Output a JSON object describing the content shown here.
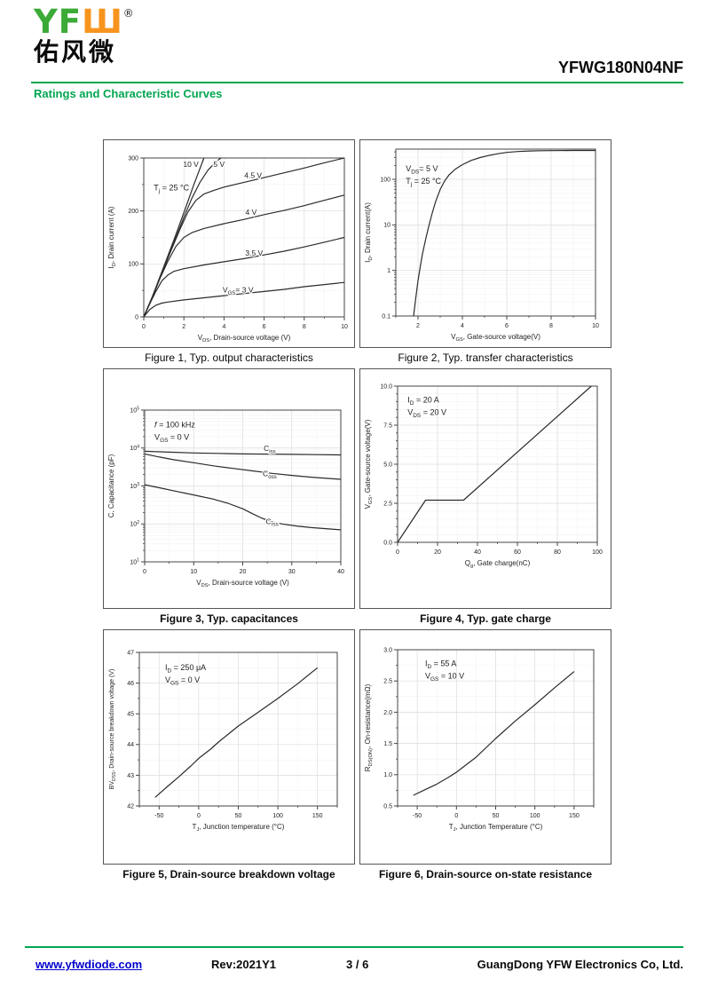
{
  "header": {
    "logo": {
      "text_green": "YF",
      "glyph_orange": "Ш",
      "registered": "®",
      "chinese": "佑风微"
    },
    "part_number": "YFWG180N04NF",
    "section_title": "Ratings and Characteristic Curves"
  },
  "colors": {
    "green": "#00A650",
    "logo_green": "#3BAA36",
    "logo_orange": "#F7941E",
    "link_blue": "#0000CC",
    "curve": "#2B2B2B"
  },
  "figures": [
    {
      "caption": "Figure 1, Typ. output characteristics",
      "chart_data": {
        "type": "line",
        "xlabel": "V~DS~, Drain-source voltage (V)",
        "ylabel": "I~D~, Drain current (A)",
        "x_range": [
          0,
          10
        ],
        "y_range": [
          0,
          300
        ],
        "xticks": [
          0,
          2,
          4,
          6,
          8,
          10
        ],
        "xtick_labels": [
          "0",
          "2",
          "4",
          "6",
          "8",
          "10"
        ],
        "yticks": [
          0,
          100,
          200,
          300
        ],
        "ytick_labels": [
          "0",
          "100",
          "200",
          "300"
        ],
        "annotations": [
          "T~j~ = 25 °C"
        ],
        "ann_pos": [
          0.05,
          0.17
        ],
        "series": [
          {
            "name": "VGS=10V",
            "x": [
              0,
              0.5,
              1,
              1.5,
              2,
              2.5,
              3.0
            ],
            "y": [
              0,
              45,
              95,
              145,
              197,
              250,
              300
            ]
          },
          {
            "name": "VGS=5V",
            "x": [
              0,
              0.5,
              1,
              1.5,
              2,
              2.4,
              2.8,
              3.2,
              3.6,
              3.85
            ],
            "y": [
              0,
              44,
              92,
              140,
              188,
              224,
              254,
              277,
              293,
              300
            ]
          },
          {
            "name": "VGS=4.5V",
            "x": [
              0,
              0.4,
              0.8,
              1.3,
              1.8,
              2.2,
              2.6,
              3.0,
              3.5,
              4,
              5,
              6,
              7,
              8,
              9,
              10
            ],
            "y": [
              0,
              35,
              75,
              120,
              165,
              198,
              220,
              232,
              239,
              245,
              254,
              263,
              272,
              281,
              291,
              300
            ]
          },
          {
            "name": "VGS=4V",
            "x": [
              0,
              0.4,
              0.8,
              1.2,
              1.6,
              2.0,
              2.4,
              3,
              4,
              5,
              6,
              7,
              8,
              9,
              10
            ],
            "y": [
              0,
              34,
              72,
              105,
              133,
              150,
              159,
              167,
              176,
              184,
              193,
              201,
              210,
              220,
              230
            ]
          },
          {
            "name": "VGS=3.5V",
            "x": [
              0,
              0.3,
              0.6,
              0.9,
              1.2,
              1.5,
              2,
              3,
              4,
              5,
              6,
              7,
              8,
              9,
              10
            ],
            "y": [
              0,
              25,
              48,
              68,
              79,
              86,
              91,
              98,
              104,
              110,
              117,
              124,
              132,
              141,
              150
            ]
          },
          {
            "name": "VGS=3V",
            "x": [
              0,
              0.3,
              0.6,
              0.9,
              1.2,
              2,
              3,
              4,
              5,
              6,
              7,
              8,
              9,
              10
            ],
            "y": [
              0,
              14,
              22,
              26,
              28,
              32,
              36,
              40,
              44,
              48,
              52,
              57,
              61,
              65
            ]
          }
        ],
        "curve_labels": [
          {
            "text": "10 V",
            "x": 2.35,
            "y": 283
          },
          {
            "text": "5 V",
            "x": 3.75,
            "y": 283
          },
          {
            "text": "4.5 V",
            "x": 5.45,
            "y": 262
          },
          {
            "text": "4 V",
            "x": 5.35,
            "y": 193
          },
          {
            "text": "3.5 V",
            "x": 5.5,
            "y": 116
          },
          {
            "text": "V~GS~= 3 V",
            "x": 4.7,
            "y": 46
          }
        ]
      }
    },
    {
      "caption": "Figure 2, Typ. transfer characteristics",
      "chart_data": {
        "type": "line",
        "xlabel": "V~GS~, Gate-source voltage(V)",
        "ylabel": "I~D~, Drain current(A)",
        "x_range": [
          1,
          10
        ],
        "y_range": [
          0.1,
          460
        ],
        "y_log": true,
        "xticks": [
          2,
          4,
          6,
          8,
          10
        ],
        "xtick_labels": [
          "2",
          "4",
          "6",
          "8",
          "10"
        ],
        "yticks": [
          0.1,
          1,
          10,
          100
        ],
        "ytick_labels": [
          "0.1",
          "1",
          "10",
          "100"
        ],
        "annotations": [
          "V~DS~= 5 V",
          "T~j~ = 25 °C"
        ],
        "ann_pos": [
          0.05,
          0.1
        ],
        "series": [
          {
            "name": "ID vs VGS",
            "x": [
              1.8,
              1.9,
              2.0,
              2.1,
              2.2,
              2.35,
              2.5,
              2.65,
              2.8,
              3.0,
              3.2,
              3.4,
              3.7,
              4.0,
              4.4,
              4.8,
              5.2,
              5.6,
              6.0,
              6.5,
              7.0,
              7.5,
              8.0,
              9.0,
              10
            ],
            "y": [
              0.1,
              0.25,
              0.6,
              1.2,
              2.3,
              5,
              10,
              19,
              33,
              60,
              92,
              125,
              170,
              210,
              260,
              300,
              335,
              365,
              390,
              408,
              418,
              424,
              427,
              430,
              430
            ]
          }
        ],
        "curve_labels": []
      }
    },
    {
      "caption": "Figure 3, Typ. capacitances",
      "chart_data": {
        "type": "line",
        "xlabel": "V~DS~, Drain-source voltage (V)",
        "ylabel": "C, Capacitance (pF)",
        "x_range": [
          0,
          40
        ],
        "y_range": [
          10,
          100000
        ],
        "y_log": true,
        "xticks": [
          0,
          10,
          20,
          30,
          40
        ],
        "xtick_labels": [
          "0",
          "10",
          "20",
          "30",
          "40"
        ],
        "yticks": [
          10,
          100,
          1000,
          10000,
          100000
        ],
        "ytick_labels": [
          "10^1^",
          "10^2^",
          "10^3^",
          "10^4^",
          "10^5^"
        ],
        "annotations": [
          "*f* = 100 kHz",
          "V~GS~ = 0 V"
        ],
        "ann_pos": [
          0.05,
          0.08
        ],
        "series": [
          {
            "name": "Ciss",
            "x": [
              0,
              5,
              10,
              15,
              20,
              25,
              30,
              35,
              40
            ],
            "y": [
              8200,
              7800,
              7400,
              7200,
              7000,
              6900,
              6800,
              6700,
              6600
            ]
          },
          {
            "name": "Coss",
            "x": [
              0,
              3,
              6,
              10,
              14,
              18,
              22,
              26,
              30,
              34,
              40
            ],
            "y": [
              7000,
              5800,
              4900,
              4100,
              3400,
              2900,
              2500,
              2150,
              1900,
              1700,
              1500
            ]
          },
          {
            "name": "Crss",
            "x": [
              0,
              3,
              6,
              10,
              14,
              17,
              20,
              22,
              24,
              26,
              28,
              31,
              34,
              40
            ],
            "y": [
              1080,
              900,
              740,
              580,
              450,
              350,
              250,
              185,
              140,
              115,
              100,
              88,
              80,
              70
            ]
          }
        ],
        "curve_labels": [
          {
            "text": "C~iss~",
            "x": 25.5,
            "y": 8300
          },
          {
            "text": "C~oss~",
            "x": 25.5,
            "y": 1800
          },
          {
            "text": "C~rss~",
            "x": 26,
            "y": 100
          }
        ]
      }
    },
    {
      "caption": "Figure 4, Typ. gate charge",
      "chart_data": {
        "type": "line",
        "xlabel": "Q~g~, Gate charge(nC)",
        "ylabel": "V~GS~, Gate-source voltage(V)",
        "x_range": [
          0,
          100
        ],
        "y_range": [
          0,
          10
        ],
        "xticks": [
          0,
          20,
          40,
          60,
          80,
          100
        ],
        "xtick_labels": [
          "0",
          "20",
          "40",
          "60",
          "80",
          "100"
        ],
        "yticks": [
          0,
          2.5,
          5,
          7.5,
          10
        ],
        "ytick_labels": [
          "0.0",
          "2.5",
          "5.0",
          "7.5",
          "10.0"
        ],
        "y_minor_div": 5,
        "annotations": [
          "I~D~  = 20 A",
          "V~DS~ = 20 V"
        ],
        "ann_pos": [
          0.05,
          0.07
        ],
        "series": [
          {
            "name": "VGS vs Qg",
            "x": [
              0,
              14,
              33,
              97
            ],
            "y": [
              0,
              2.7,
              2.7,
              10
            ]
          }
        ],
        "curve_labels": []
      }
    },
    {
      "caption": "Figure 5, Drain-source breakdown voltage",
      "chart_data": {
        "type": "line",
        "xlabel": "T~J~, Junction temperature (°C)",
        "ylabel": "BV~DSS~, Drain-source breakdown voltage (V)",
        "x_range": [
          -75,
          175
        ],
        "y_range": [
          42,
          47
        ],
        "xticks": [
          -50,
          0,
          50,
          100,
          150
        ],
        "xtick_labels": [
          "-50",
          "0",
          "50",
          "100",
          "150"
        ],
        "yticks": [
          42,
          43,
          44,
          45,
          46,
          47
        ],
        "ytick_labels": [
          "42",
          "43",
          "44",
          "45",
          "46",
          "47"
        ],
        "annotations": [
          "I~D~ = 250 μA",
          "V~GS~ = 0 V"
        ],
        "ann_pos": [
          0.13,
          0.08
        ],
        "series": [
          {
            "name": "BVDSS vs Tj",
            "x": [
              -55,
              -40,
              -25,
              -10,
              0,
              15,
              25,
              50,
              75,
              100,
              125,
              150
            ],
            "y": [
              42.28,
              42.62,
              42.95,
              43.3,
              43.55,
              43.85,
              44.08,
              44.6,
              45.05,
              45.5,
              45.98,
              46.5
            ]
          }
        ],
        "curve_labels": []
      }
    },
    {
      "caption": "Figure 6, Drain-source on-state resistance",
      "chart_data": {
        "type": "line",
        "xlabel": "T~J~, Junction Temperature (°C)",
        "ylabel": "R~DS(ON)~, On-resistance(mΩ)",
        "x_range": [
          -75,
          175
        ],
        "y_range": [
          0.5,
          3.0
        ],
        "xticks": [
          -50,
          0,
          50,
          100,
          150
        ],
        "xtick_labels": [
          "-50",
          "0",
          "50",
          "100",
          "150"
        ],
        "yticks": [
          0.5,
          1.0,
          1.5,
          2.0,
          2.5,
          3.0
        ],
        "ytick_labels": [
          "0.5",
          "1.0",
          "1.5",
          "2.0",
          "2.5",
          "3.0"
        ],
        "annotations": [
          "I~D~ = 55 A",
          "V~GS~ = 10 V"
        ],
        "ann_pos": [
          0.14,
          0.07
        ],
        "series": [
          {
            "name": "RDSON vs Tj",
            "x": [
              -55,
              -40,
              -25,
              -10,
              0,
              25,
              50,
              75,
              100,
              125,
              150
            ],
            "y": [
              0.67,
              0.76,
              0.85,
              0.96,
              1.04,
              1.28,
              1.58,
              1.86,
              2.12,
              2.39,
              2.65
            ]
          }
        ],
        "curve_labels": []
      }
    }
  ],
  "footer": {
    "website": "www.yfwdiode.com",
    "rev": "Rev:2021Y1",
    "page": "3 / 6",
    "company": "GuangDong YFW Electronics Co, Ltd."
  }
}
